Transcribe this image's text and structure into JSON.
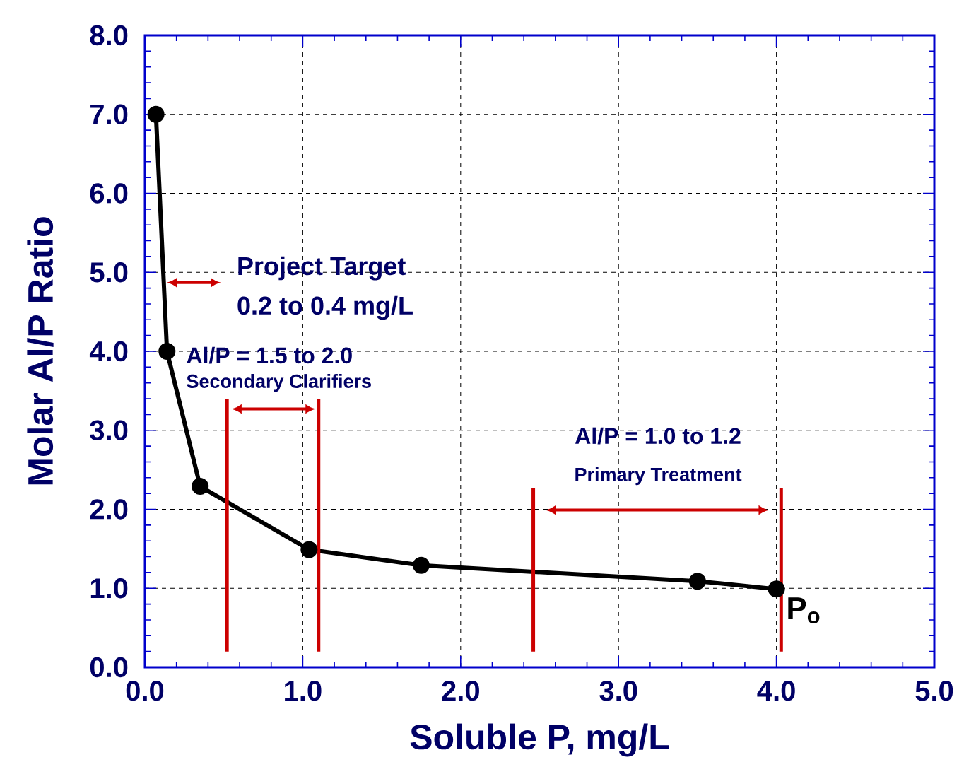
{
  "chart_data": {
    "type": "line",
    "xlabel": "Soluble P, mg/L",
    "ylabel": "Molar Al/P Ratio",
    "xlim": [
      0,
      5
    ],
    "ylim": [
      0,
      8
    ],
    "xticks": [
      {
        "value": 0,
        "label": "0.0"
      },
      {
        "value": 1,
        "label": "1.0"
      },
      {
        "value": 2,
        "label": "2.0"
      },
      {
        "value": 3,
        "label": "3.0"
      },
      {
        "value": 4,
        "label": "4.0"
      },
      {
        "value": 5,
        "label": "5.0"
      }
    ],
    "yticks": [
      {
        "value": 0,
        "label": "0.0"
      },
      {
        "value": 1,
        "label": "1.0"
      },
      {
        "value": 2,
        "label": "2.0"
      },
      {
        "value": 3,
        "label": "3.0"
      },
      {
        "value": 4,
        "label": "4.0"
      },
      {
        "value": 5,
        "label": "5.0"
      },
      {
        "value": 6,
        "label": "6.0"
      },
      {
        "value": 7,
        "label": "7.0"
      },
      {
        "value": 8,
        "label": "8.0"
      }
    ],
    "grid": true,
    "line_style": "solid",
    "series": [
      {
        "color": "#000000",
        "marker": "circle",
        "x": [
          0.07,
          0.14,
          0.35,
          1.04,
          1.75,
          3.5,
          4.0
        ],
        "values": [
          7.0,
          4.0,
          2.29,
          1.49,
          1.29,
          1.09,
          0.99
        ]
      },
      {
        "color": "#cc0000",
        "marker": "none",
        "x": [
          0.52,
          0.52
        ],
        "values": [
          0.2,
          3.4
        ]
      },
      {
        "color": "#cc0000",
        "marker": "none",
        "x": [
          1.1,
          1.1
        ],
        "values": [
          0.2,
          3.4
        ]
      },
      {
        "color": "#cc0000",
        "marker": "none",
        "x": [
          2.46,
          2.46
        ],
        "values": [
          0.2,
          2.27
        ]
      },
      {
        "color": "#cc0000",
        "marker": "none",
        "x": [
          4.03,
          4.03
        ],
        "values": [
          0.2,
          2.27
        ]
      }
    ],
    "annotations": [
      "Project Target",
      "0.2 to 0.4 mg/L",
      "Al/P = 1.5 to 2.0",
      "Secondary Clarifiers",
      "Al/P = 1.0 to 1.2",
      "Primary Treatment",
      "P$_{o}$"
    ]
  }
}
